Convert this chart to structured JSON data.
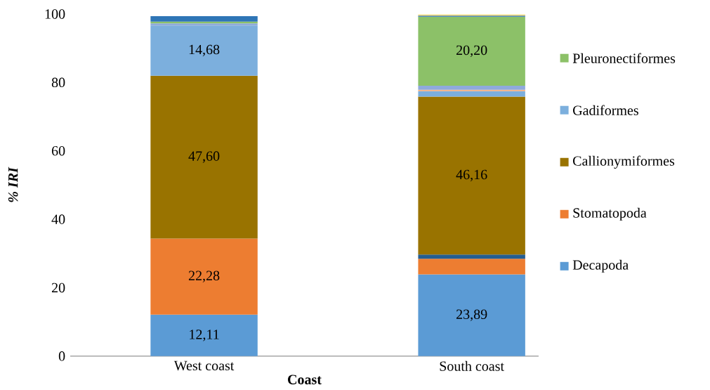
{
  "chart_data": {
    "type": "bar",
    "stacked": true,
    "xlabel": "Coast",
    "ylabel": "% IRI",
    "categories": [
      "West coast",
      "South coast"
    ],
    "ylim": [
      0,
      100
    ],
    "yticks": [
      0,
      20,
      40,
      60,
      80,
      100
    ],
    "legend": "right",
    "series": [
      {
        "name": "Decapoda",
        "color": "#5b9bd5",
        "values": [
          12.11,
          23.89
        ],
        "value_labels": [
          "12,11",
          "23,89"
        ]
      },
      {
        "name": "Stomatopoda",
        "color": "#ed7d31",
        "values": [
          22.28,
          4.6
        ],
        "value_labels": [
          "22,28",
          null
        ]
      },
      {
        "color": "#255e91",
        "values": [
          null,
          1.2
        ]
      },
      {
        "name": "Callionymiformes",
        "color": "#997300",
        "values": [
          47.6,
          46.16
        ],
        "value_labels": [
          "47,60",
          "46,16"
        ]
      },
      {
        "name": "Gadiformes",
        "color": "#7cafdd",
        "values": [
          14.68,
          1.6
        ],
        "value_labels": [
          "14,68",
          null
        ]
      },
      {
        "color": "#f4b183",
        "values": [
          null,
          0.4
        ]
      },
      {
        "color": "#8faadc",
        "values": [
          0.6,
          1.2
        ]
      },
      {
        "name": "Pleuronectiformes",
        "color": "#8cc168",
        "values": [
          0.5,
          20.2
        ],
        "value_labels": [
          null,
          "20,20"
        ]
      },
      {
        "color": "#2e75b6",
        "values": [
          1.6,
          0.3
        ]
      },
      {
        "color": "#ffd966",
        "values": [
          null,
          0.3
        ]
      }
    ]
  }
}
